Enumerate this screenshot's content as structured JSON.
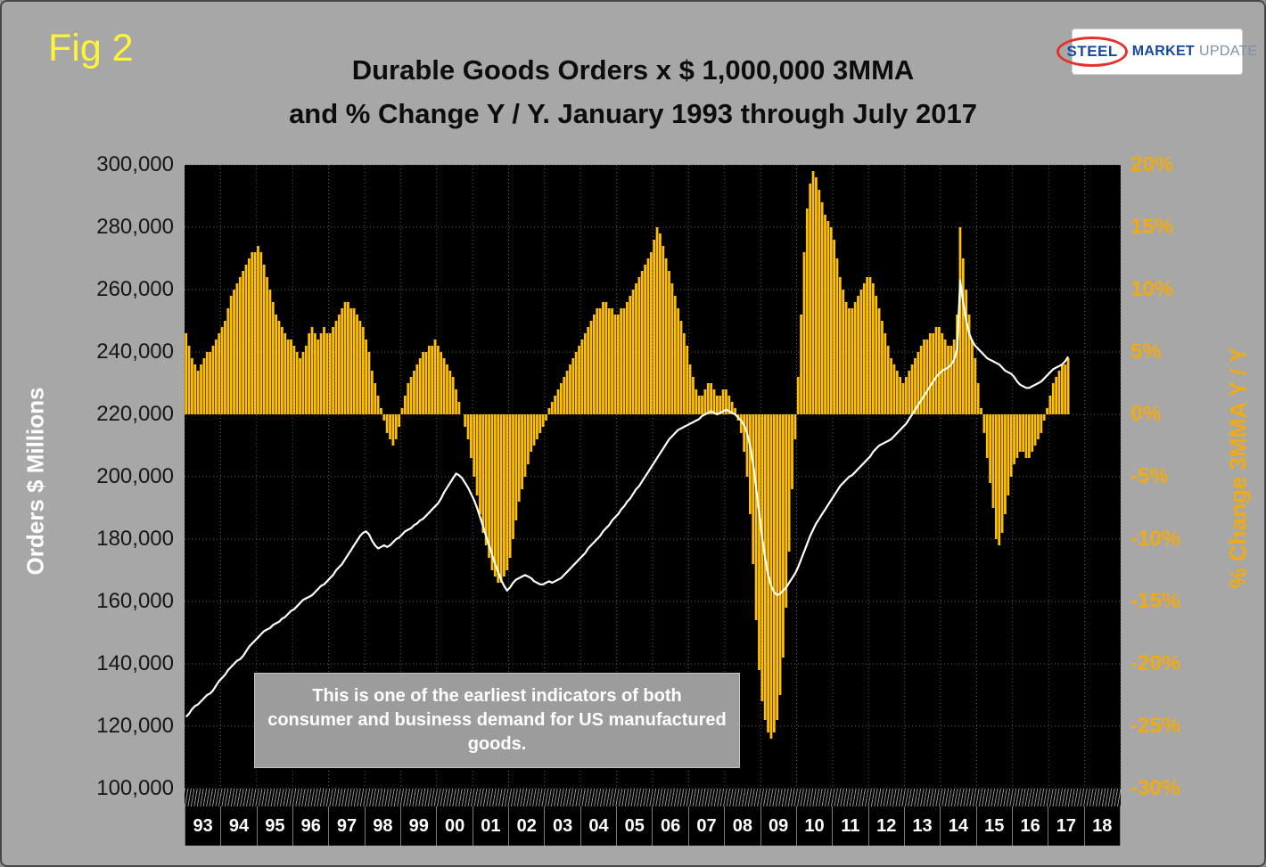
{
  "figure_label": "Fig 2",
  "title_line1": "Durable Goods Orders x $ 1,000,000 3MMA",
  "title_line2": "and % Change Y / Y. January 1993 through July 2017",
  "logo": {
    "steel": "STEEL",
    "market": "MARKET",
    "update": "UPDATE"
  },
  "annotation": "This is one of the earliest indicators of both consumer and business demand for US manufactured goods.",
  "chart_data": {
    "type": "bar",
    "subtype": "combo-bar-line-monthly",
    "period_start": "January 1993",
    "period_end": "July 2017",
    "x_years": [
      "93",
      "94",
      "95",
      "96",
      "97",
      "98",
      "99",
      "00",
      "01",
      "02",
      "03",
      "04",
      "05",
      "06",
      "07",
      "08",
      "09",
      "10",
      "11",
      "12",
      "13",
      "14",
      "15",
      "16",
      "17",
      "18"
    ],
    "left_axis": {
      "title": "Orders $ Millions",
      "min": 100000,
      "max": 300000,
      "step": 20000,
      "tick_labels": [
        "300,000",
        "280,000",
        "260,000",
        "240,000",
        "220,000",
        "200,000",
        "180,000",
        "160,000",
        "140,000",
        "120,000",
        "100,000"
      ]
    },
    "right_axis": {
      "title": "% Change 3MMA Y / Y",
      "min": -30,
      "max": 20,
      "step": 5,
      "tick_labels": [
        "20%",
        "15%",
        "10%",
        "5%",
        "0%",
        "-5%",
        "-10%",
        "-15%",
        "-20%",
        "-25%",
        "-30%"
      ]
    },
    "grid": true,
    "legend": "none",
    "colors": {
      "background": "#a7a7a7",
      "plot_bg": "#000000",
      "bar": "#ffc000",
      "line": "#ffffff",
      "grid": "#5f5f5f",
      "left_tick_label": "#161616",
      "right_tick_label": "#f0ab14",
      "year_label": "#ffffff",
      "annotation_bg": "#9c9c9c",
      "fig_label": "#fff335"
    },
    "series": [
      {
        "name": "Durable Goods Orders 3MMA ($ Millions)",
        "type": "line",
        "axis": "left",
        "color": "#ffffff",
        "values": [
          123000,
          124000,
          125500,
          126500,
          127000,
          128000,
          129000,
          130000,
          130500,
          131500,
          133000,
          134500,
          135500,
          136500,
          138000,
          139000,
          140000,
          141000,
          141500,
          142500,
          144000,
          145500,
          146500,
          147500,
          148500,
          149500,
          150500,
          151000,
          151500,
          152500,
          153000,
          153500,
          154500,
          155000,
          156000,
          157000,
          157500,
          158500,
          159500,
          160500,
          161000,
          161500,
          162000,
          163000,
          164000,
          165000,
          165500,
          166500,
          167500,
          168500,
          170000,
          171000,
          172000,
          173500,
          175000,
          176500,
          178000,
          179500,
          181000,
          182000,
          182500,
          181500,
          179500,
          178000,
          177000,
          177500,
          178000,
          177500,
          178000,
          179000,
          180000,
          180500,
          181500,
          182500,
          183000,
          183500,
          184500,
          185000,
          186000,
          186500,
          187500,
          188500,
          189500,
          190500,
          191500,
          193000,
          195000,
          196500,
          198000,
          199500,
          201000,
          200500,
          199500,
          198000,
          196500,
          194500,
          192500,
          190000,
          187000,
          184000,
          181000,
          178000,
          175000,
          172000,
          169500,
          167000,
          165000,
          163500,
          164500,
          166000,
          167000,
          167500,
          168000,
          168500,
          168000,
          167500,
          166500,
          166000,
          165500,
          165500,
          166000,
          166500,
          166000,
          166500,
          167000,
          167500,
          168500,
          169500,
          170500,
          171500,
          172500,
          173500,
          174500,
          175500,
          177000,
          178000,
          179000,
          180000,
          181000,
          182500,
          183500,
          184500,
          186000,
          187000,
          188000,
          189500,
          190500,
          192000,
          193000,
          194500,
          196000,
          197000,
          198500,
          200000,
          201500,
          203000,
          204500,
          206000,
          207500,
          209000,
          210500,
          212000,
          213000,
          214000,
          215000,
          215500,
          216000,
          216500,
          217000,
          217500,
          218000,
          218500,
          219500,
          220000,
          220500,
          221000,
          220500,
          220000,
          220500,
          221000,
          221500,
          221000,
          220500,
          220000,
          219000,
          218000,
          216500,
          214000,
          210000,
          204000,
          196500,
          188500,
          180500,
          174000,
          168500,
          165000,
          163000,
          162000,
          162500,
          163500,
          164500,
          166000,
          167500,
          169000,
          171000,
          173500,
          176000,
          178500,
          181000,
          183000,
          185000,
          186500,
          188000,
          189500,
          191000,
          192500,
          194000,
          195500,
          197000,
          198000,
          199000,
          200000,
          200500,
          201500,
          202500,
          203500,
          204500,
          205500,
          206500,
          208000,
          209000,
          210000,
          210500,
          211000,
          211500,
          212000,
          213000,
          214000,
          215000,
          216000,
          217000,
          218500,
          220000,
          221500,
          223000,
          224500,
          226000,
          227500,
          229000,
          230500,
          232000,
          233000,
          234000,
          234500,
          235000,
          236000,
          237500,
          241000,
          263000,
          256000,
          250000,
          246000,
          243500,
          242000,
          241000,
          240000,
          239000,
          238000,
          237500,
          237000,
          236500,
          236000,
          235000,
          234000,
          233500,
          233000,
          232000,
          230500,
          229500,
          229000,
          228500,
          228500,
          229000,
          229500,
          230000,
          230500,
          231500,
          232500,
          233500,
          234500,
          235000,
          235500,
          236000,
          237000,
          238500
        ]
      },
      {
        "name": "% Change 3MMA Y / Y",
        "type": "bar",
        "axis": "right",
        "color": "#ffc000",
        "values": [
          6.5,
          5.5,
          4.5,
          4,
          3.5,
          4,
          4.5,
          5,
          5,
          5.5,
          6,
          6.5,
          7,
          7.5,
          8.5,
          9.5,
          10,
          10.5,
          11,
          11.5,
          12,
          12.5,
          13,
          13,
          13.5,
          13,
          12,
          11,
          10,
          9,
          8,
          7.5,
          7,
          6.5,
          6,
          6,
          5.5,
          5,
          4.5,
          5,
          5.5,
          6.5,
          7,
          6.5,
          6,
          6.5,
          7,
          6.5,
          6.5,
          7,
          7.5,
          8,
          8.5,
          9,
          9,
          8.5,
          8.5,
          8,
          7.5,
          7,
          6,
          5,
          3.5,
          2.5,
          1.5,
          0.5,
          -0.5,
          -1.5,
          -2,
          -2.5,
          -2,
          -1,
          0.5,
          1.5,
          2.5,
          3,
          3.5,
          4,
          4.5,
          5,
          5,
          5.5,
          5.5,
          6,
          5.5,
          5,
          4.5,
          4,
          3.5,
          3,
          2,
          1,
          0,
          -1,
          -2,
          -3.5,
          -5,
          -6.5,
          -8,
          -9.5,
          -10.5,
          -11.5,
          -12.5,
          -13,
          -13.5,
          -13.5,
          -13,
          -12.5,
          -11.5,
          -10,
          -8.5,
          -7,
          -6,
          -5,
          -4,
          -3,
          -2.5,
          -2,
          -1.5,
          -1,
          -0.5,
          0.5,
          1,
          1.5,
          2,
          2.5,
          3,
          3.5,
          4,
          4.5,
          5,
          5.5,
          6,
          6.5,
          7,
          7.5,
          8,
          8.5,
          8.5,
          9,
          9,
          8.5,
          8.5,
          8,
          8,
          8.5,
          8.5,
          9,
          9.5,
          10,
          10.5,
          11,
          11.5,
          12,
          12.5,
          13,
          14,
          15,
          14.5,
          13.5,
          12.5,
          11.5,
          10.5,
          9.5,
          8.5,
          7.5,
          6.5,
          5.5,
          4,
          3,
          2,
          1.5,
          1.5,
          2,
          2.5,
          2.5,
          2,
          1.5,
          1.5,
          2,
          2,
          1.5,
          1,
          0.5,
          -0.5,
          -1.5,
          -3,
          -5,
          -8,
          -12,
          -16.5,
          -20.5,
          -23,
          -24.5,
          -25.5,
          -26,
          -25.5,
          -24.5,
          -22.5,
          -19.5,
          -15.5,
          -11,
          -6,
          -2,
          3,
          8,
          13,
          16.5,
          18.5,
          19.5,
          19,
          18,
          17,
          16,
          15.5,
          15,
          14,
          12.5,
          11,
          10,
          9,
          8.5,
          8.5,
          9,
          9.5,
          10,
          10.5,
          11,
          11,
          10.5,
          9.5,
          8.5,
          7.5,
          6.5,
          5.5,
          4.5,
          4,
          3.5,
          3,
          2.5,
          3,
          3.5,
          4,
          4.5,
          5,
          5.5,
          6,
          6,
          6.5,
          6.5,
          7,
          7,
          6.5,
          6,
          5.5,
          5.5,
          6,
          8,
          15,
          12.5,
          10,
          8,
          6,
          4.5,
          2.5,
          0.5,
          -1.5,
          -3.5,
          -5.5,
          -7.5,
          -10,
          -10.5,
          -9.5,
          -8,
          -6.5,
          -5,
          -4,
          -3.5,
          -3,
          -3,
          -3.5,
          -3.5,
          -3,
          -2.5,
          -2,
          -1.5,
          -0.5,
          0.5,
          1.5,
          2.5,
          3,
          3.5,
          4,
          4,
          4.5
        ]
      }
    ]
  }
}
